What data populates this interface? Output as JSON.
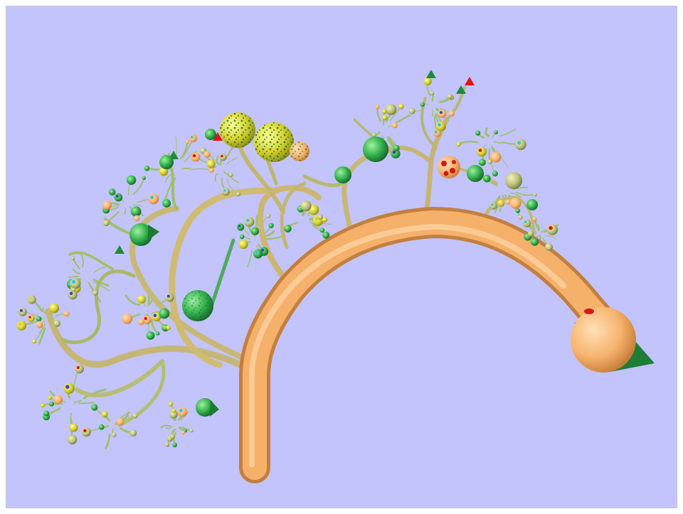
{
  "scene": {
    "subject": "fractal-tree",
    "background_color": "#c3c4fb",
    "frame_color": "#ffffff",
    "trunk_color": "#f5b06a",
    "branch_color": "#c9b872",
    "twig_color": "#9dbf6e",
    "palette": {
      "orange_ball": "#f8b977",
      "green_ball": "#2fae4a",
      "dark_green": "#1d6e2c",
      "yellow_ball": "#d9d23a",
      "red_spot": "#e01515",
      "cyan_spot": "#35c6e0",
      "blue_spot": "#3344cc",
      "cone_green": "#1f8a3c"
    }
  }
}
